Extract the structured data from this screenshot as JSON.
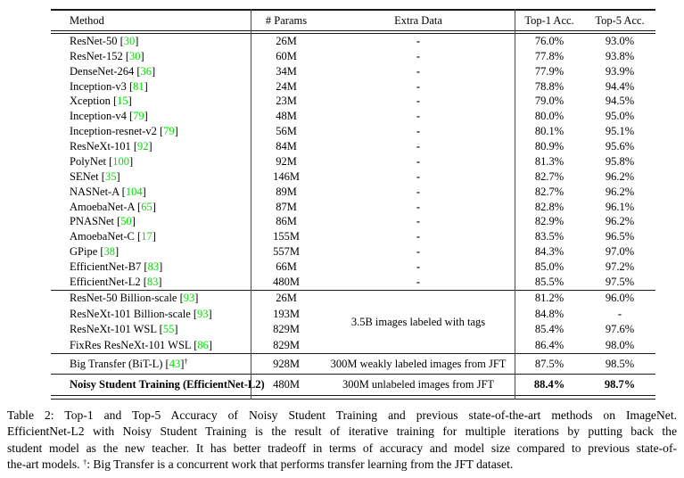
{
  "colors": {
    "citation": "#00dd00"
  },
  "table": {
    "headers": [
      "Method",
      "# Params",
      "Extra Data",
      "Top-1 Acc.",
      "Top-5 Acc."
    ],
    "sections": [
      {
        "name": "imagenet-only-models",
        "rows": [
          {
            "method": "ResNet-50",
            "cite": "30",
            "params": "26M",
            "extra": "-",
            "top1": "76.0%",
            "top5": "93.0%"
          },
          {
            "method": "ResNet-152",
            "cite": "30",
            "params": "60M",
            "extra": "-",
            "top1": "77.8%",
            "top5": "93.8%"
          },
          {
            "method": "DenseNet-264",
            "cite": "36",
            "params": "34M",
            "extra": "-",
            "top1": "77.9%",
            "top5": "93.9%"
          },
          {
            "method": "Inception-v3",
            "cite": "81",
            "params": "24M",
            "extra": "-",
            "top1": "78.8%",
            "top5": "94.4%"
          },
          {
            "method": "Xception",
            "cite": "15",
            "params": "23M",
            "extra": "-",
            "top1": "79.0%",
            "top5": "94.5%"
          },
          {
            "method": "Inception-v4",
            "cite": "79",
            "params": "48M",
            "extra": "-",
            "top1": "80.0%",
            "top5": "95.0%"
          },
          {
            "method": "Inception-resnet-v2",
            "cite": "79",
            "params": "56M",
            "extra": "-",
            "top1": "80.1%",
            "top5": "95.1%"
          },
          {
            "method": "ResNeXt-101",
            "cite": "92",
            "params": "84M",
            "extra": "-",
            "top1": "80.9%",
            "top5": "95.6%"
          },
          {
            "method": "PolyNet",
            "cite": "100",
            "params": "92M",
            "extra": "-",
            "top1": "81.3%",
            "top5": "95.8%"
          },
          {
            "method": "SENet",
            "cite": "35",
            "params": "146M",
            "extra": "-",
            "top1": "82.7%",
            "top5": "96.2%"
          },
          {
            "method": "NASNet-A",
            "cite": "104",
            "params": "89M",
            "extra": "-",
            "top1": "82.7%",
            "top5": "96.2%"
          },
          {
            "method": "AmoebaNet-A",
            "cite": "65",
            "params": "87M",
            "extra": "-",
            "top1": "82.8%",
            "top5": "96.1%"
          },
          {
            "method": "PNASNet",
            "cite": "50",
            "params": "86M",
            "extra": "-",
            "top1": "82.9%",
            "top5": "96.2%"
          },
          {
            "method": "AmoebaNet-C",
            "cite": "17",
            "params": "155M",
            "extra": "-",
            "top1": "83.5%",
            "top5": "96.5%"
          },
          {
            "method": "GPipe",
            "cite": "38",
            "params": "557M",
            "extra": "-",
            "top1": "84.3%",
            "top5": "97.0%"
          },
          {
            "method": "EfficientNet-B7",
            "cite": "83",
            "params": "66M",
            "extra": "-",
            "top1": "85.0%",
            "top5": "97.2%"
          },
          {
            "method": "EfficientNet-L2",
            "cite": "83",
            "params": "480M",
            "extra": "-",
            "top1": "85.5%",
            "top5": "97.5%"
          }
        ]
      },
      {
        "name": "billion-scale-models",
        "merged_extra": "3.5B images labeled with tags",
        "rows": [
          {
            "method": "ResNet-50 Billion-scale",
            "cite": "93",
            "params": "26M",
            "extra": "",
            "top1": "81.2%",
            "top5": "96.0%"
          },
          {
            "method": "ResNeXt-101 Billion-scale",
            "cite": "93",
            "params": "193M",
            "extra": "",
            "top1": "84.8%",
            "top5": "-"
          },
          {
            "method": "ResNeXt-101 WSL",
            "cite": "55",
            "params": "829M",
            "extra": "",
            "top1": "85.4%",
            "top5": "97.6%"
          },
          {
            "method": "FixRes ResNeXt-101 WSL",
            "cite": "86",
            "params": "829M",
            "extra": "",
            "top1": "86.4%",
            "top5": "98.0%"
          }
        ]
      },
      {
        "name": "big-transfer",
        "rows": [
          {
            "method": "Big Transfer (BiT-L)",
            "cite": "43",
            "sup": "†",
            "params": "928M",
            "extra": "300M weakly labeled images from JFT",
            "top1": "87.5%",
            "top5": "98.5%"
          }
        ]
      },
      {
        "name": "noisy-student",
        "bold": true,
        "rows": [
          {
            "method": "Noisy Student Training (EfficientNet-L2)",
            "params": "480M",
            "extra": "300M unlabeled images from JFT",
            "top1": "88.4%",
            "top5": "98.7%"
          }
        ]
      }
    ]
  },
  "caption": {
    "lines": [
      "Table 2: Top-1 and Top-5 Accuracy of Noisy Student Training and previous state-of-the-art methods on ImageNet.",
      "EfficientNet-L2 with Noisy Student Training is the result of iterative training for multiple iterations by putting back the",
      "student model as the new teacher. It has better tradeoff in terms of accuracy and model size compared to previous state-of-"
    ],
    "last_line_pre": "the-art models. ",
    "dagger": "†",
    "last_line_post": ": Big Transfer is a concurrent work that performs transfer learning from the JFT dataset."
  }
}
